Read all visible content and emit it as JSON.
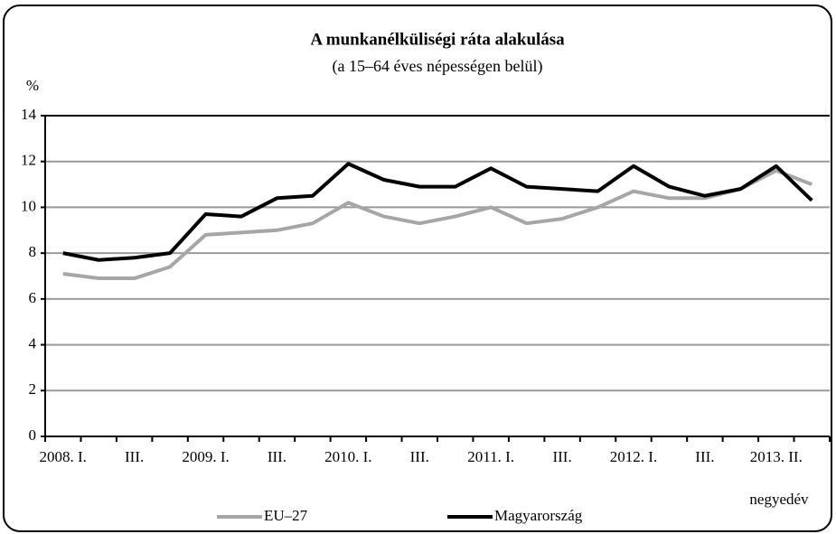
{
  "chart_data": {
    "type": "line",
    "title": "A munkanélküliségi ráta alakulása",
    "subtitle": "(a 15–64 éves népességen belül)",
    "y_label": "%",
    "x_label": "negyedév",
    "categories": [
      "2008. I.",
      null,
      "III.",
      null,
      "2009. I.",
      null,
      "III.",
      null,
      "2010. I.",
      null,
      "III.",
      null,
      "2011. I.",
      null,
      "III.",
      null,
      "2012. I.",
      null,
      "III.",
      null,
      "2013. II.",
      null
    ],
    "series": [
      {
        "name": "EU–27",
        "color": "#a6a6a6",
        "values": [
          7.1,
          6.9,
          6.9,
          7.4,
          8.8,
          8.9,
          9.0,
          9.3,
          10.2,
          9.6,
          9.3,
          9.6,
          10.0,
          9.3,
          9.5,
          10.0,
          10.7,
          10.4,
          10.4,
          10.8,
          11.6,
          11.0
        ]
      },
      {
        "name": "Magyarország",
        "color": "#000000",
        "values": [
          8.0,
          7.7,
          7.8,
          8.0,
          9.7,
          9.6,
          10.4,
          10.5,
          11.9,
          11.2,
          10.9,
          10.9,
          11.7,
          10.9,
          10.8,
          10.7,
          11.8,
          10.9,
          10.5,
          10.8,
          11.8,
          10.3
        ]
      }
    ],
    "ylim": [
      0,
      14
    ],
    "yticks": [
      0,
      2,
      4,
      6,
      8,
      10,
      12,
      14
    ],
    "grid": true,
    "legend": "bottom"
  }
}
